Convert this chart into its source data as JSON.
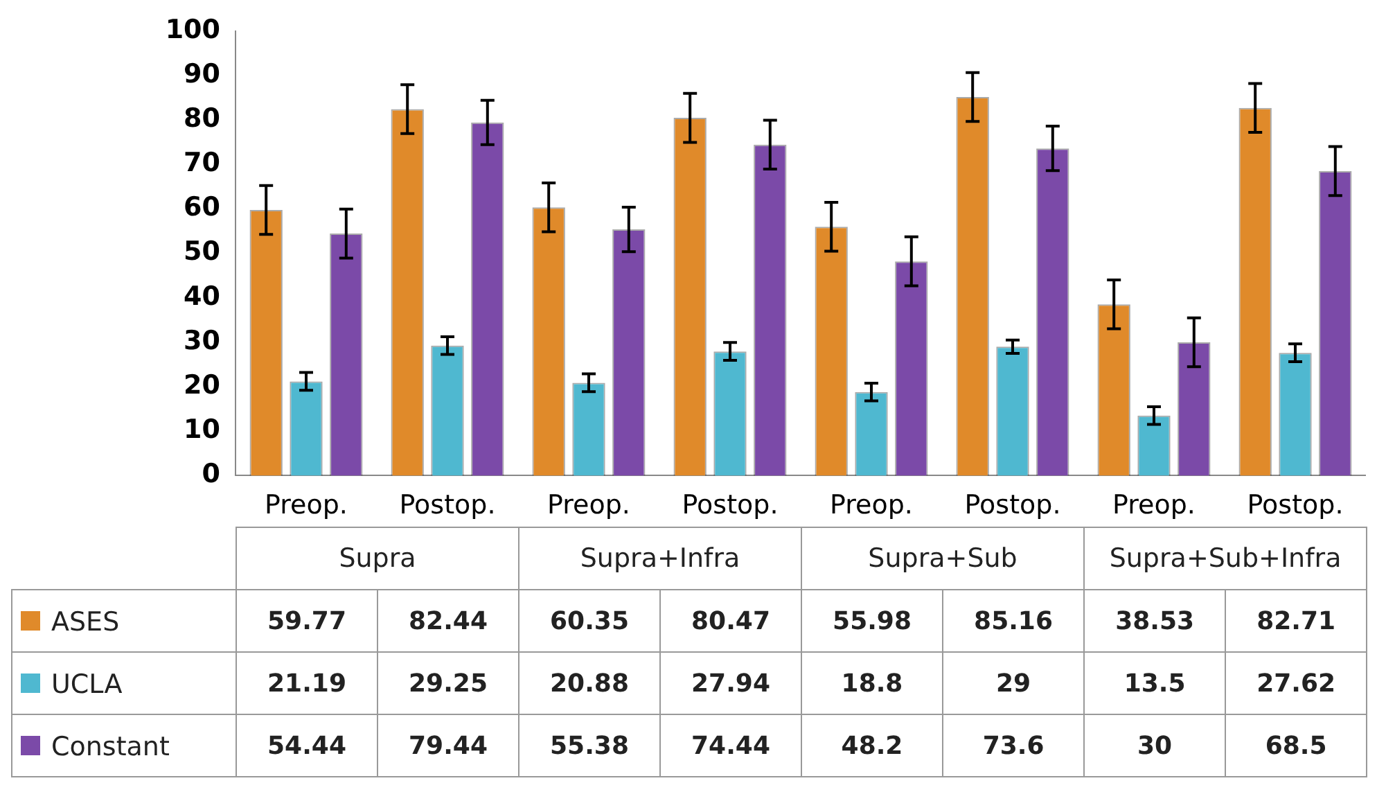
{
  "chart_data": {
    "type": "bar",
    "categories": [
      "Preop.",
      "Postop.",
      "Preop.",
      "Postop.",
      "Preop.",
      "Postop.",
      "Preop.",
      "Postop."
    ],
    "annotations": [
      "Supra",
      "Supra+Infra",
      "Supra+Sub",
      "Supra+Sub+Infra"
    ],
    "series": [
      {
        "name": "ASES",
        "color": "#e08a2a",
        "values": [
          59.77,
          82.44,
          60.35,
          80.47,
          55.98,
          85.16,
          38.53,
          82.71
        ],
        "errors": [
          5.5,
          5.5,
          5.5,
          5.5,
          5.5,
          5.5,
          5.5,
          5.5
        ]
      },
      {
        "name": "UCLA",
        "color": "#4fb8d0",
        "values": [
          21.19,
          29.25,
          20.88,
          27.94,
          18.8,
          29,
          13.5,
          27.62
        ],
        "errors": [
          2,
          2,
          2,
          2,
          2,
          1.5,
          2,
          2
        ]
      },
      {
        "name": "Constant",
        "color": "#7b4aa8",
        "values": [
          54.44,
          79.44,
          55.38,
          74.44,
          48.2,
          73.6,
          30,
          68.5
        ],
        "errors": [
          5.5,
          5,
          5,
          5.5,
          5.5,
          5,
          5.5,
          5.5
        ]
      }
    ],
    "ylim": [
      0,
      100
    ],
    "yticks": [
      0,
      10,
      20,
      30,
      40,
      50,
      60,
      70,
      80,
      90,
      100
    ],
    "grid": false,
    "legend": "bottom",
    "data_labels": true
  }
}
